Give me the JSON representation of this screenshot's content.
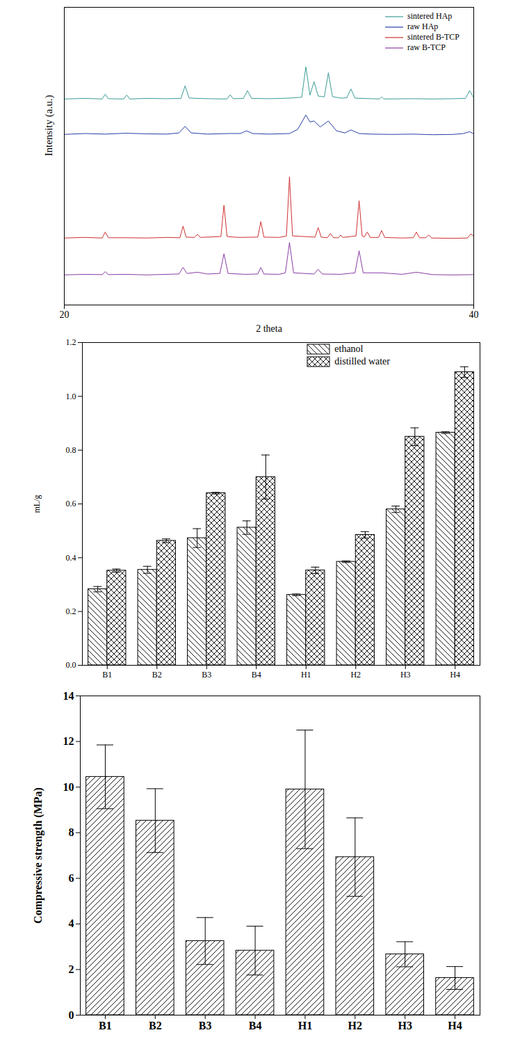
{
  "chart_data": [
    {
      "type": "line",
      "x_label": "2 theta",
      "y_label": "Intensity (a.u.)",
      "xlim": [
        20,
        40
      ],
      "xticks": [
        20,
        40
      ],
      "ylim": [
        0,
        100
      ],
      "tick_labels": "x",
      "legend": "top-right",
      "series": [
        {
          "name": "sintered HAp",
          "color": "#3a9c96",
          "x": [
            20,
            21,
            21.85,
            22.0,
            22.15,
            22.9,
            23.05,
            23.2,
            24,
            25,
            25.7,
            25.9,
            26.1,
            27,
            27.95,
            28.1,
            28.25,
            28.75,
            28.95,
            29.15,
            30,
            31,
            31.6,
            31.8,
            32.0,
            32.2,
            32.4,
            32.7,
            32.9,
            33.1,
            33.5,
            33.8,
            34.0,
            34.2,
            35,
            35.4,
            35.5,
            35.6,
            37,
            38,
            39,
            39.6,
            39.8,
            40
          ],
          "values": [
            69.2,
            69.4,
            69.2,
            70.8,
            69.3,
            69.2,
            70.5,
            69.2,
            69.4,
            69.3,
            69.4,
            73.6,
            69.5,
            69.3,
            69.2,
            70.6,
            69.3,
            69.4,
            72.0,
            69.4,
            69.3,
            69.5,
            69.8,
            80.0,
            70.5,
            75.0,
            70.2,
            69.9,
            78.0,
            70.0,
            69.5,
            69.6,
            72.6,
            69.5,
            69.3,
            69.2,
            69.9,
            69.2,
            69.3,
            69.2,
            69.3,
            69.4,
            72.0,
            69.6
          ]
        },
        {
          "name": "raw HAp",
          "color": "#2b3ea6",
          "x": [
            20,
            21,
            22,
            23,
            24,
            25,
            25.6,
            25.9,
            26.2,
            27,
            28,
            28.6,
            28.9,
            29.2,
            30,
            31,
            31.4,
            31.8,
            32.0,
            32.2,
            32.5,
            32.9,
            33.3,
            33.7,
            34.0,
            34.4,
            35,
            36,
            37,
            38,
            39,
            39.5,
            39.8,
            40
          ],
          "values": [
            57.3,
            57.6,
            57.4,
            57.7,
            57.5,
            57.4,
            57.8,
            60.0,
            57.8,
            57.4,
            57.6,
            57.6,
            58.5,
            57.6,
            57.4,
            57.6,
            59.0,
            63.8,
            61.5,
            61.8,
            59.8,
            61.8,
            58.5,
            57.8,
            58.8,
            57.6,
            57.4,
            57.3,
            57.4,
            57.2,
            57.3,
            57.6,
            58.2,
            57.5
          ]
        },
        {
          "name": "sintered B-TCP",
          "color": "#d03030",
          "x": [
            20,
            21,
            21.85,
            22.0,
            22.15,
            23,
            24,
            25,
            25.65,
            25.8,
            25.95,
            26.35,
            26.5,
            26.65,
            27.65,
            27.8,
            27.95,
            28.5,
            29.45,
            29.6,
            29.75,
            30.5,
            30.85,
            31.0,
            31.15,
            32.25,
            32.4,
            32.55,
            32.85,
            33.0,
            33.15,
            33.4,
            33.5,
            33.6,
            34.25,
            34.4,
            34.55,
            34.65,
            34.8,
            34.95,
            35.35,
            35.5,
            35.65,
            36.5,
            37.05,
            37.2,
            37.35,
            37.65,
            37.8,
            37.95,
            39,
            39.7,
            39.85,
            40
          ],
          "values": [
            22.5,
            22.7,
            22.5,
            24.5,
            22.6,
            22.6,
            22.5,
            22.7,
            22.6,
            26.5,
            22.8,
            22.7,
            23.7,
            22.7,
            23.0,
            33.5,
            23.0,
            22.7,
            22.8,
            28.0,
            22.8,
            22.7,
            23.2,
            43.1,
            23.2,
            22.8,
            26.0,
            22.8,
            22.6,
            24.0,
            22.6,
            22.6,
            23.5,
            22.7,
            23.2,
            35.0,
            23.2,
            22.8,
            24.5,
            22.7,
            22.7,
            25.0,
            22.7,
            22.5,
            22.6,
            24.5,
            22.6,
            22.6,
            23.5,
            22.5,
            22.4,
            22.5,
            23.8,
            23.2
          ]
        },
        {
          "name": "raw B-TCP",
          "color": "#8a3ca6",
          "x": [
            20,
            21,
            21.85,
            22.0,
            22.15,
            23,
            24,
            25,
            25.6,
            25.8,
            26.0,
            26.5,
            27,
            27.6,
            27.8,
            28.0,
            28.8,
            29.45,
            29.6,
            29.75,
            30.5,
            30.8,
            31.0,
            31.2,
            32.2,
            32.4,
            32.6,
            33.5,
            34.2,
            34.4,
            34.6,
            35.5,
            36.5,
            37.2,
            38,
            39,
            40
          ],
          "values": [
            10.1,
            10.3,
            10.2,
            11.2,
            10.2,
            10.3,
            10.1,
            10.3,
            10.4,
            12.6,
            10.6,
            11.0,
            10.4,
            10.6,
            17.2,
            10.6,
            10.3,
            10.4,
            12.6,
            10.4,
            10.3,
            10.8,
            21.0,
            10.8,
            10.4,
            12.0,
            10.4,
            10.3,
            10.8,
            18.2,
            10.8,
            10.8,
            10.3,
            11.0,
            10.2,
            10.1,
            10.2
          ]
        }
      ]
    },
    {
      "type": "bar",
      "y_label": "mL/g",
      "categories": [
        "B1",
        "B2",
        "B3",
        "B4",
        "H1",
        "H2",
        "H3",
        "H4"
      ],
      "ylim": [
        0,
        1.2
      ],
      "yticks": [
        {
          "value": 0,
          "label": "0.0"
        },
        0.2,
        0.4,
        0.6,
        0.8,
        {
          "value": 1,
          "label": "1.0"
        },
        1.2
      ],
      "legend": "top-right",
      "series": [
        {
          "name": "ethanol",
          "color": "#000000",
          "values": [
            0.283,
            0.355,
            0.473,
            0.512,
            0.262,
            0.385,
            0.58,
            0.865
          ],
          "errors": [
            0.01,
            0.013,
            0.035,
            0.025,
            0.003,
            0.003,
            0.012,
            0.003
          ]
        },
        {
          "name": "distilled water",
          "color": "#000000",
          "values": [
            0.352,
            0.463,
            0.64,
            0.7,
            0.353,
            0.485,
            0.85,
            1.09
          ],
          "errors": [
            0.006,
            0.007,
            0.003,
            0.082,
            0.012,
            0.012,
            0.033,
            0.02
          ]
        }
      ]
    },
    {
      "type": "bar",
      "y_label": "Compressive strength (MPa)",
      "categories": [
        "B1",
        "B2",
        "B3",
        "B4",
        "H1",
        "H2",
        "H3",
        "H4"
      ],
      "values": [
        10.45,
        8.53,
        3.25,
        2.83,
        9.9,
        6.93,
        2.67,
        1.63
      ],
      "errors": [
        1.4,
        1.4,
        1.03,
        1.07,
        2.6,
        1.72,
        0.55,
        0.5
      ],
      "color": "#000000",
      "ylim": [
        0,
        14
      ],
      "yticks": [
        0,
        2,
        4,
        6,
        8,
        10,
        12,
        14
      ]
    }
  ]
}
